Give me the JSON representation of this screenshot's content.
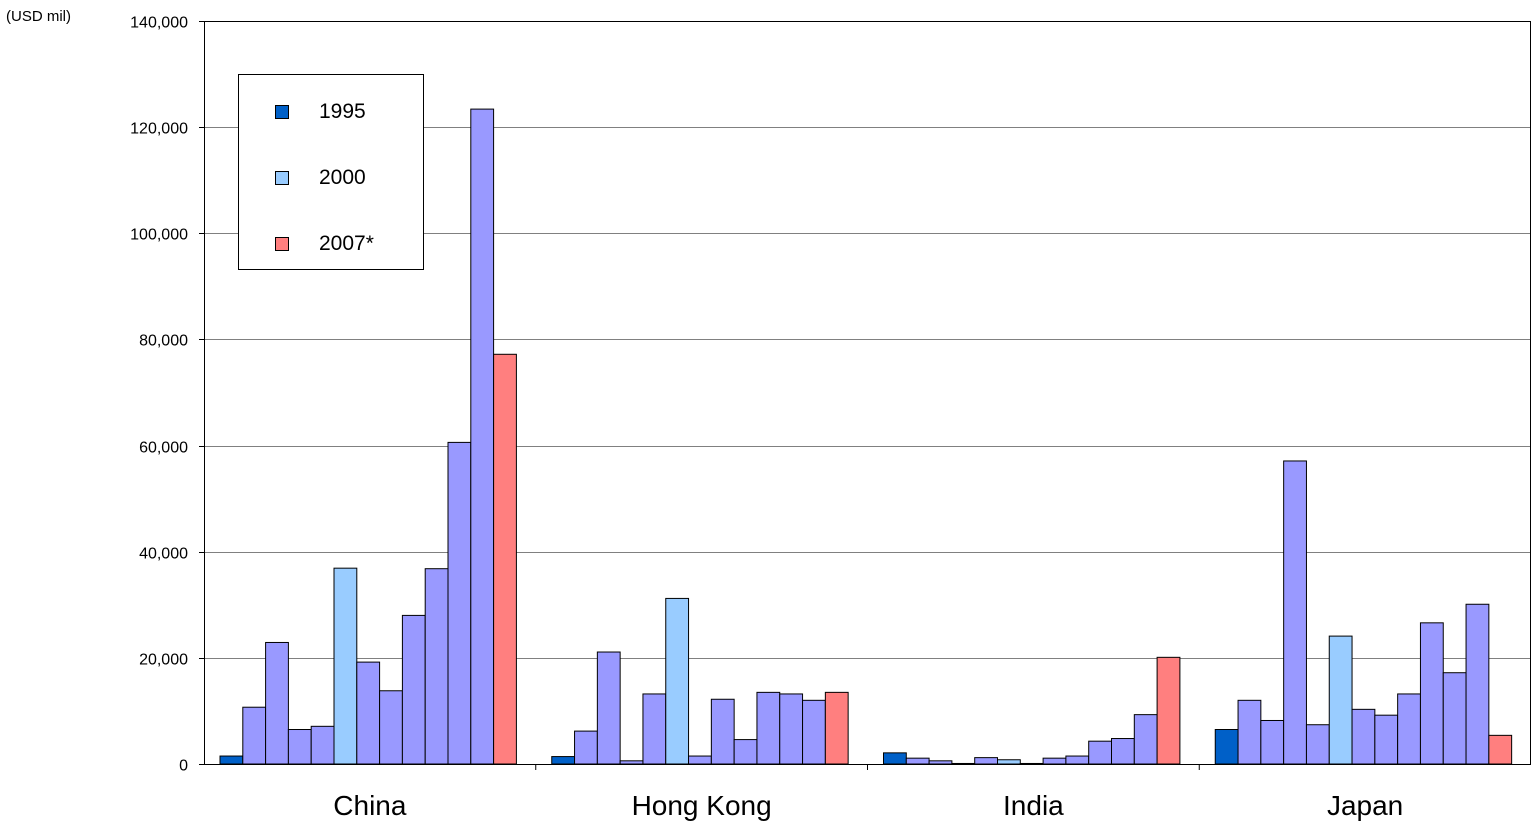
{
  "unit_label": "(USD mil)",
  "colors": {
    "first_year": "#0060C8",
    "highlight_year": "#99CCFF",
    "last_year": "#FF7F7F",
    "other_years": "#9999FF",
    "gridline": "#808080",
    "bar_border": "#000000"
  },
  "legend": {
    "items": [
      {
        "label": "1995",
        "color": "#0060C8"
      },
      {
        "label": "2000",
        "color": "#99CCFF"
      },
      {
        "label": "2007*",
        "color": "#FF7F7F"
      }
    ]
  },
  "chart_data": {
    "type": "bar",
    "ylim": [
      0,
      140000
    ],
    "yticks": [
      0,
      20000,
      40000,
      60000,
      80000,
      100000,
      120000,
      140000
    ],
    "ytick_labels": [
      "0",
      "20,000",
      "40,000",
      "60,000",
      "80,000",
      "100,000",
      "120,000",
      "140,000"
    ],
    "grid": true,
    "legend_position": "top-left",
    "bars_per_group": 13,
    "highlight_bar_index": 5,
    "groups": [
      {
        "label": "China",
        "values": [
          1500,
          10700,
          22900,
          6500,
          7100,
          36900,
          19200,
          13800,
          28000,
          36800,
          60600,
          123400,
          77200
        ]
      },
      {
        "label": "Hong Kong",
        "values": [
          1400,
          6200,
          21100,
          600,
          13200,
          31200,
          1500,
          12200,
          4600,
          13500,
          13200,
          12000,
          13500
        ]
      },
      {
        "label": "India",
        "values": [
          2100,
          1100,
          600,
          100,
          1200,
          800,
          100,
          1100,
          1500,
          4300,
          4800,
          9300,
          20100
        ]
      },
      {
        "label": "Japan",
        "values": [
          6500,
          12000,
          8200,
          57100,
          7400,
          24100,
          10300,
          9200,
          13200,
          26600,
          17200,
          30100,
          5400
        ]
      }
    ]
  }
}
